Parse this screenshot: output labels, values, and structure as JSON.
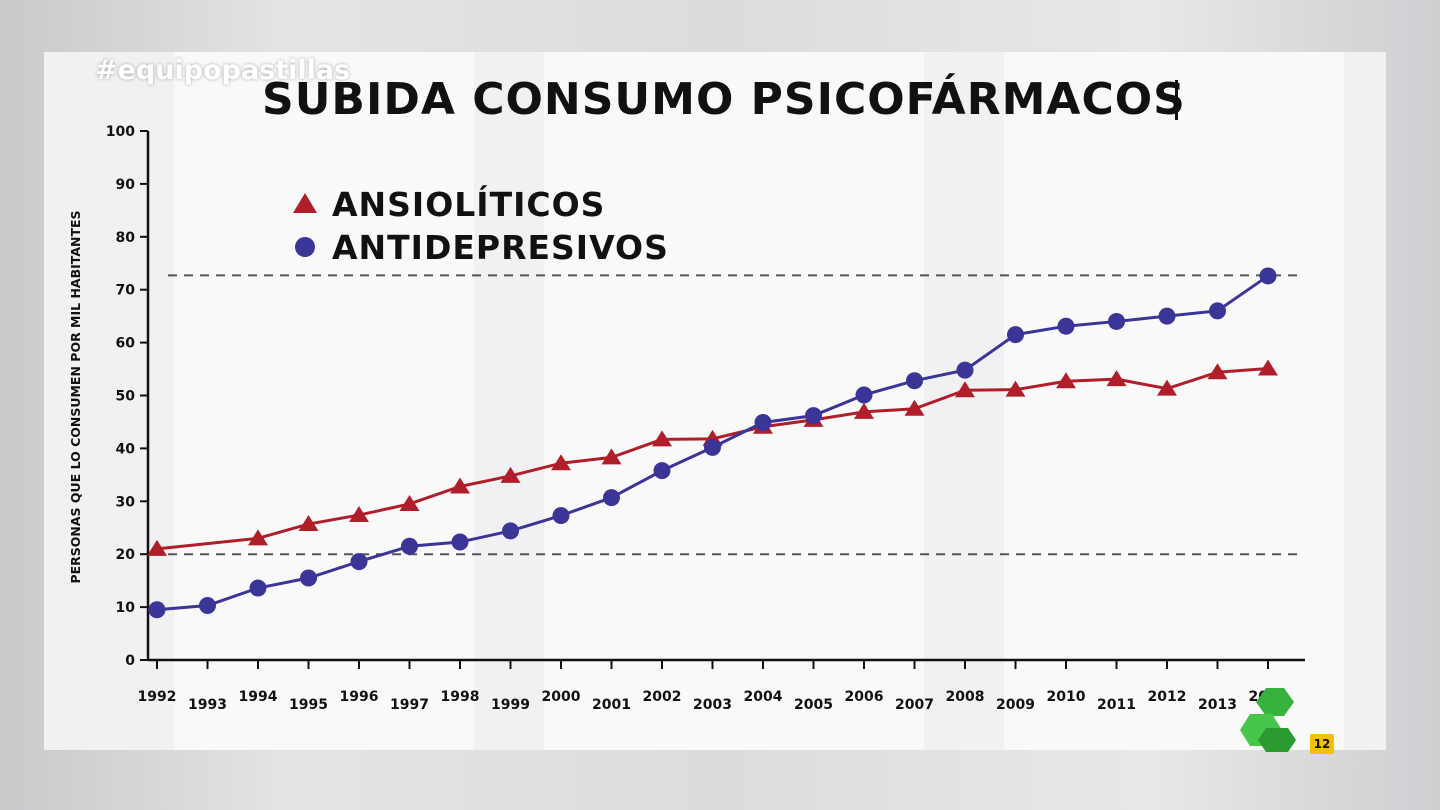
{
  "overlay": {
    "hashtag": "#equipopastillas",
    "rating": "12",
    "channel_logo": "lasexta"
  },
  "chart_data": {
    "type": "line",
    "title": "SUBIDA CONSUMO PSICOFÁRMACOS",
    "ylabel": "PERSONAS QUE LO CONSUMEN POR MIL HABITANTES",
    "xlabel": "",
    "ylim": [
      0,
      100
    ],
    "yticks": [
      0,
      10,
      20,
      30,
      40,
      50,
      60,
      70,
      80,
      90,
      100
    ],
    "grid": false,
    "legend": "top-left",
    "reference_lines": [
      72.7,
      20
    ],
    "x": [
      "1992",
      "1993",
      "1994",
      "1995",
      "1996",
      "1997",
      "1998",
      "1999",
      "2000",
      "2001",
      "2002",
      "2003",
      "2004",
      "2005",
      "2006",
      "2007",
      "2008",
      "2009",
      "2010",
      "2011",
      "2012",
      "2013",
      "2014"
    ],
    "series": [
      {
        "name": "ANSIOLÍTICOS",
        "marker": "triangle",
        "color": "#b01e2a",
        "values": [
          21.0,
          null,
          23.0,
          25.7,
          27.4,
          29.5,
          32.8,
          34.8,
          37.2,
          38.3,
          41.7,
          41.8,
          44.1,
          45.4,
          46.9,
          47.5,
          51.0,
          51.1,
          52.7,
          53.1,
          51.3,
          54.4,
          55.1
        ]
      },
      {
        "name": "ANTIDEPRESIVOS",
        "marker": "circle",
        "color": "#3a3596",
        "values": [
          9.5,
          10.3,
          13.6,
          15.5,
          18.6,
          21.5,
          22.3,
          24.4,
          27.3,
          30.7,
          35.8,
          40.2,
          44.9,
          46.2,
          50.1,
          52.8,
          54.8,
          61.5,
          63.1,
          64.0,
          65.0,
          66.0,
          72.6
        ]
      }
    ]
  }
}
